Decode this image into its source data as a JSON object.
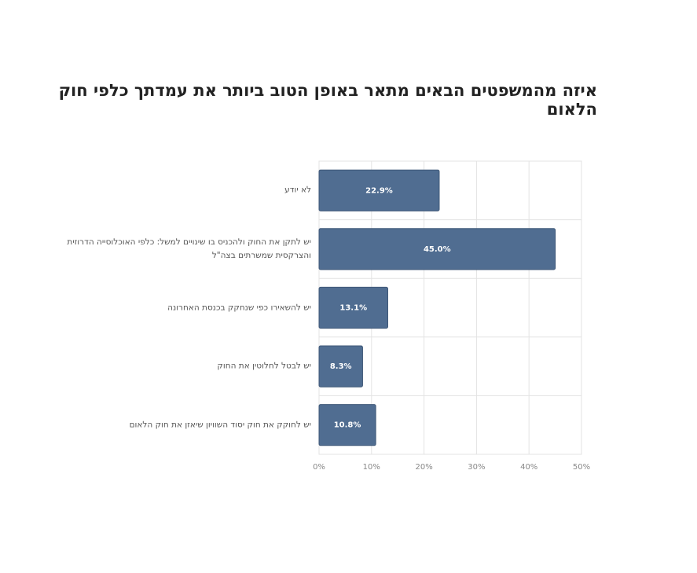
{
  "chart_data": {
    "type": "bar",
    "orientation": "horizontal",
    "title": "איזה מהמשפטים הבאים מתאר באופן הטוב ביותר את עמדתך כלפי חוק הלאום",
    "categories": [
      "לא יודע",
      "יש לתקן את החוק ולהכניס בו שינויים למשל: כלפי האוכלוסייה הדרוזית והצרקסית שמשרתים בצה\"ל",
      "יש להשאירו כפי שנחקק בכנסת האחרונה",
      "יש לבטל לחלוטין את החוק",
      "יש לחוקק את חוק יסוד השוויון שיאזן את חוק הלאום"
    ],
    "values": [
      22.9,
      45.0,
      13.1,
      8.3,
      10.8
    ],
    "value_labels": [
      "22.9%",
      "45.0%",
      "13.1%",
      "8.3%",
      "10.8%"
    ],
    "color": "#506d91",
    "xlim": [
      0,
      50
    ],
    "xticks": [
      {
        "value": 0,
        "label": "0%"
      },
      {
        "value": 10,
        "label": "10%"
      },
      {
        "value": 20,
        "label": "20%"
      },
      {
        "value": 30,
        "label": "30%"
      },
      {
        "value": 40,
        "label": "40%"
      },
      {
        "value": 50,
        "label": "50%"
      }
    ],
    "grid": true
  }
}
